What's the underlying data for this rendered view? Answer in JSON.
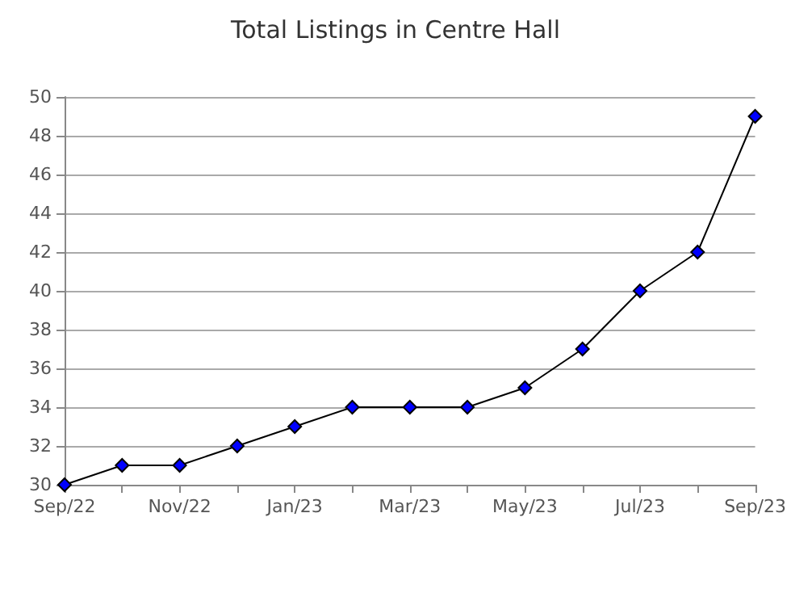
{
  "chart_data": {
    "type": "line",
    "title": "Total Listings in Centre Hall",
    "categories": [
      "Sep/22",
      null,
      "Nov/22",
      null,
      "Jan/23",
      null,
      "Mar/23",
      null,
      "May/23",
      null,
      "Jul/23",
      null,
      "Sep/23"
    ],
    "series": [
      {
        "color": "#0000ff",
        "values": [
          30,
          31,
          31,
          32,
          33,
          34,
          34,
          34,
          35,
          37,
          40,
          42,
          49
        ]
      }
    ],
    "ylim": [
      30,
      50
    ],
    "yticks": [
      30,
      32,
      34,
      36,
      38,
      40,
      42,
      44,
      46,
      48,
      50
    ],
    "grid": "y",
    "marker": "diamond",
    "line_style": "solid"
  }
}
